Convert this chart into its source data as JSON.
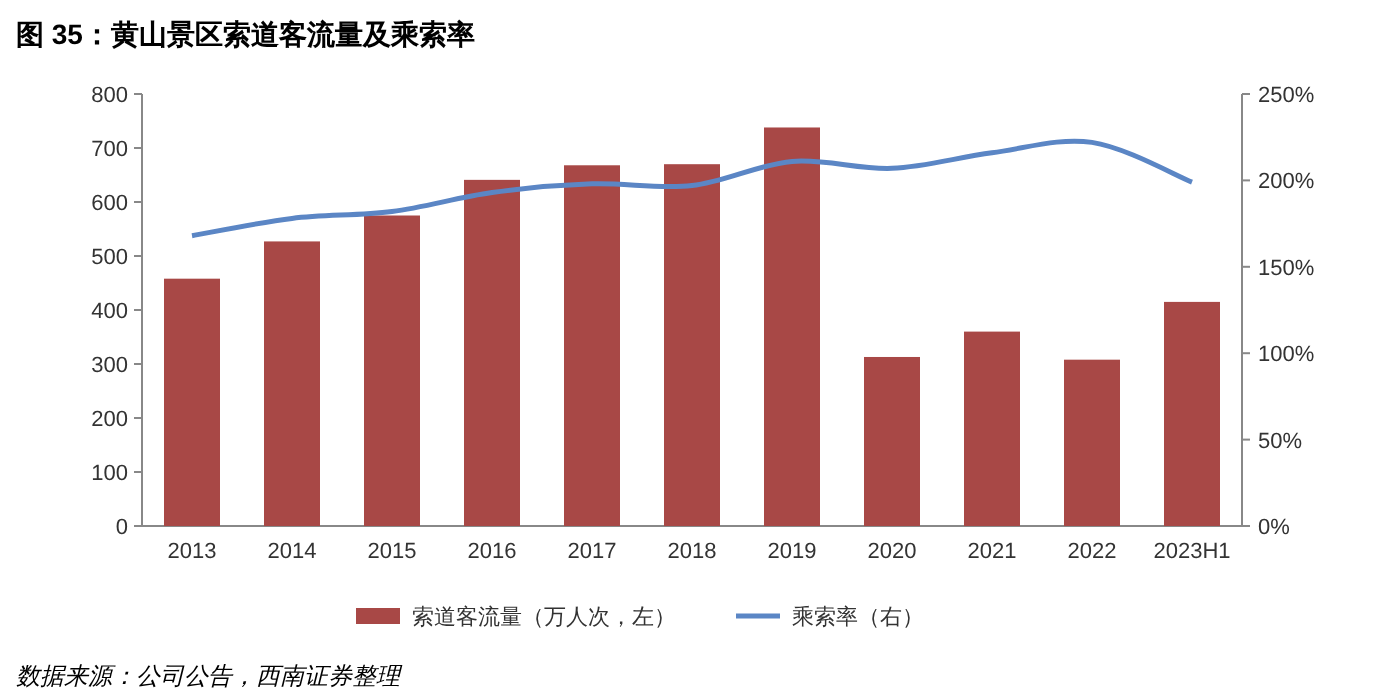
{
  "chart_data": {
    "type": "bar",
    "title": "图 35：黄山景区索道客流量及乘索率",
    "categories": [
      "2013",
      "2014",
      "2015",
      "2016",
      "2017",
      "2018",
      "2019",
      "2020",
      "2021",
      "2022",
      "2023H1"
    ],
    "series": [
      {
        "name": "索道客流量（万人次，左）",
        "color": "#a84846",
        "values": [
          458,
          527,
          575,
          641,
          668,
          670,
          738,
          313,
          360,
          308,
          415
        ]
      },
      {
        "name": "乘索率（右）",
        "type": "line",
        "axis": "y2",
        "color": "#5b86c5",
        "values": [
          168,
          178,
          182,
          193,
          198,
          197,
          211,
          207,
          216,
          222,
          199
        ]
      }
    ],
    "ylim": [
      0,
      800
    ],
    "yticks": [
      0,
      100,
      200,
      300,
      400,
      500,
      600,
      700,
      800
    ],
    "y2lim": [
      0,
      250
    ],
    "y2ticks": [
      {
        "value": 0,
        "label": "0%"
      },
      {
        "value": 50,
        "label": "50%"
      },
      {
        "value": 100,
        "label": "100%"
      },
      {
        "value": 150,
        "label": "150%"
      },
      {
        "value": 200,
        "label": "200%"
      },
      {
        "value": 250,
        "label": "250%"
      }
    ],
    "grid": false,
    "legend": "bottom",
    "marker": "none",
    "line_style": "solid",
    "annotations": [
      "数据来源：公司公告，西南证券整理"
    ]
  }
}
